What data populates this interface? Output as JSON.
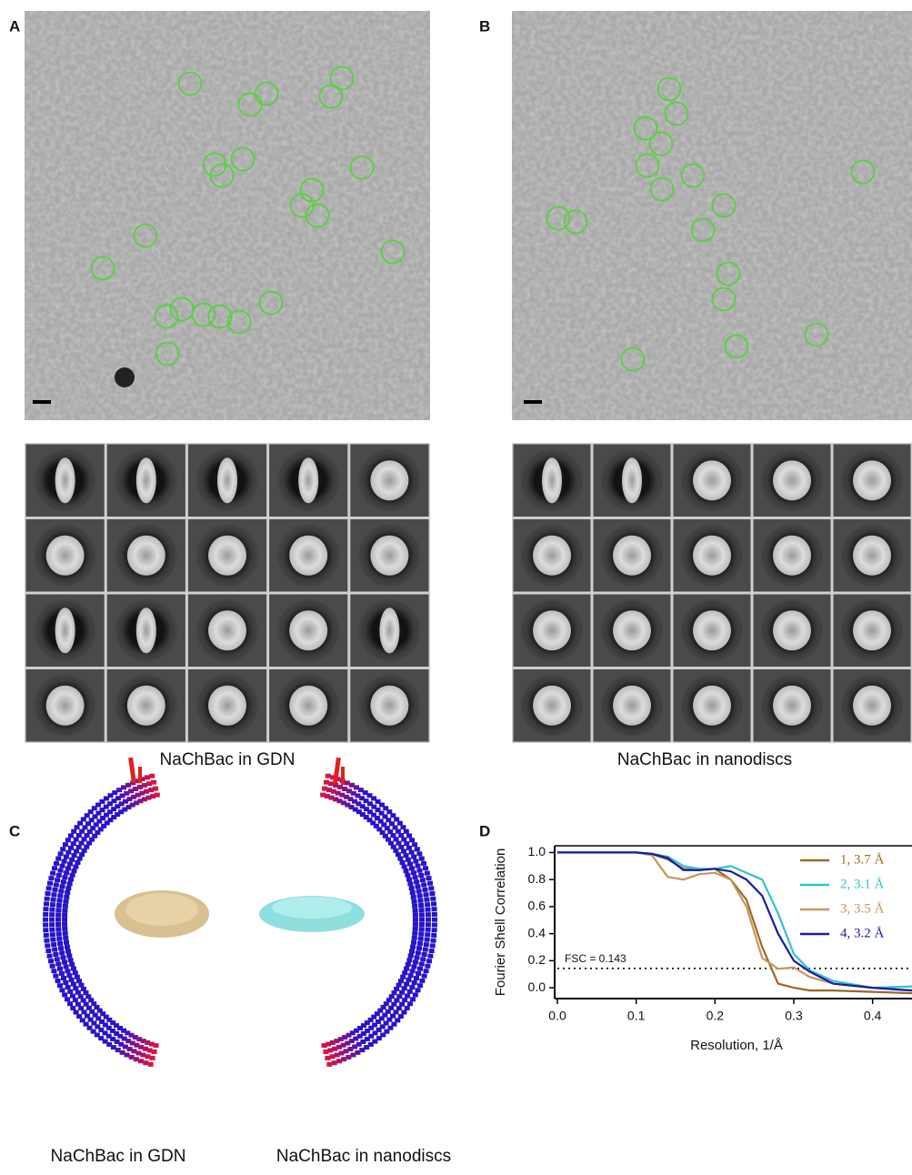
{
  "panels": {
    "a": {
      "label": "A",
      "caption": "NaChBac in GDN"
    },
    "b": {
      "label": "B",
      "caption": "NaChBac in nanodiscs"
    },
    "c": {
      "label": "C",
      "caption_left": "NaChBac in GDN",
      "caption_right": "NaChBac in nanodiscs"
    },
    "d": {
      "label": "D"
    }
  },
  "chart_data": {
    "type": "line",
    "xlabel": "Resolution, 1/Å",
    "ylabel": "Fourier Shell Correlation",
    "x": [
      0,
      0.05,
      0.1,
      0.12,
      0.14,
      0.16,
      0.18,
      0.2,
      0.22,
      0.24,
      0.26,
      0.28,
      0.3,
      0.32,
      0.35,
      0.4,
      0.45
    ],
    "series": [
      {
        "name": "1,  3.7 Å",
        "color": "#9a6a25",
        "values": [
          1,
          1,
          1,
          0.99,
          0.95,
          0.88,
          0.87,
          0.88,
          0.8,
          0.65,
          0.3,
          0.03,
          0.0,
          -0.02,
          -0.02,
          -0.03,
          -0.04
        ]
      },
      {
        "name": "2,  3.1 Å",
        "color": "#2ec4c8",
        "values": [
          1,
          1,
          1,
          0.99,
          0.97,
          0.9,
          0.88,
          0.88,
          0.9,
          0.85,
          0.8,
          0.55,
          0.25,
          0.13,
          0.05,
          0.0,
          0.01
        ]
      },
      {
        "name": "3,  3.5 Å",
        "color": "#c8965a",
        "values": [
          1,
          1,
          1,
          0.98,
          0.82,
          0.8,
          0.84,
          0.85,
          0.8,
          0.6,
          0.22,
          0.14,
          0.15,
          0.08,
          0.03,
          0.0,
          -0.02
        ]
      },
      {
        "name": "4,  3.2 Å",
        "color": "#1a1aa8",
        "values": [
          1,
          1,
          1,
          0.99,
          0.96,
          0.87,
          0.87,
          0.88,
          0.86,
          0.8,
          0.68,
          0.4,
          0.2,
          0.12,
          0.03,
          0.0,
          -0.02
        ]
      }
    ],
    "threshold": 0.143,
    "threshold_label": "FSC = 0.143",
    "xlim": [
      0,
      0.45
    ],
    "ylim": [
      -0.08,
      1.05
    ],
    "xticks": [
      {
        "value": 0,
        "label": "0.0"
      },
      0.1,
      0.2,
      0.3,
      0.4
    ],
    "yticks": [
      {
        "value": 0,
        "label": "0.0"
      },
      0.2,
      0.4,
      0.6,
      0.8,
      {
        "value": 1,
        "label": "1.0"
      }
    ]
  }
}
